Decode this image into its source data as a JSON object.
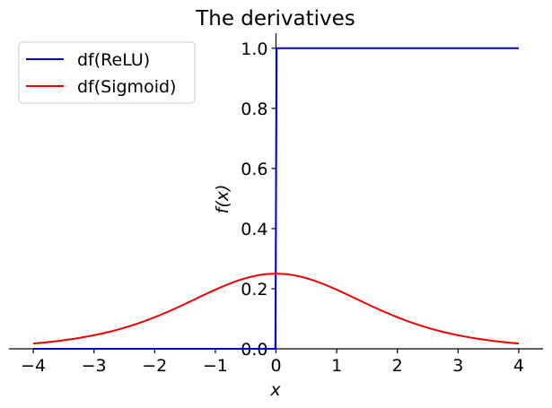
{
  "chart_data": {
    "type": "line",
    "title": "The derivatives",
    "xlabel": "x",
    "ylabel": "f(x)",
    "xlim": [
      -4.4,
      4.4
    ],
    "ylim": [
      0,
      1.05
    ],
    "xticks": [
      -4,
      -3,
      -2,
      -1,
      0,
      1,
      2,
      3,
      4
    ],
    "xtick_labels": [
      "−4",
      "−3",
      "−2",
      "−1",
      "0",
      "1",
      "2",
      "3",
      "4"
    ],
    "yticks": [
      0.0,
      0.2,
      0.4,
      0.6,
      0.8,
      1.0
    ],
    "ytick_labels": [
      "0.0",
      "0.2",
      "0.4",
      "0.6",
      "0.8",
      "1.0"
    ],
    "grid": false,
    "legend_position": "top-left",
    "series": [
      {
        "name": "df(ReLU)",
        "color": "#0000cc",
        "x": [
          -4,
          -0.01,
          0.01,
          4
        ],
        "y": [
          0,
          0,
          1,
          1
        ]
      },
      {
        "name": "df(Sigmoid)",
        "color": "#ee0000",
        "x": [
          -4,
          -3.5,
          -3,
          -2.5,
          -2,
          -1.5,
          -1,
          -0.5,
          0,
          0.5,
          1,
          1.5,
          2,
          2.5,
          3,
          3.5,
          4
        ],
        "y": [
          0.0177,
          0.0285,
          0.0452,
          0.0701,
          0.105,
          0.1491,
          0.1966,
          0.235,
          0.25,
          0.235,
          0.1966,
          0.1491,
          0.105,
          0.0701,
          0.0452,
          0.0285,
          0.0177
        ]
      }
    ]
  }
}
